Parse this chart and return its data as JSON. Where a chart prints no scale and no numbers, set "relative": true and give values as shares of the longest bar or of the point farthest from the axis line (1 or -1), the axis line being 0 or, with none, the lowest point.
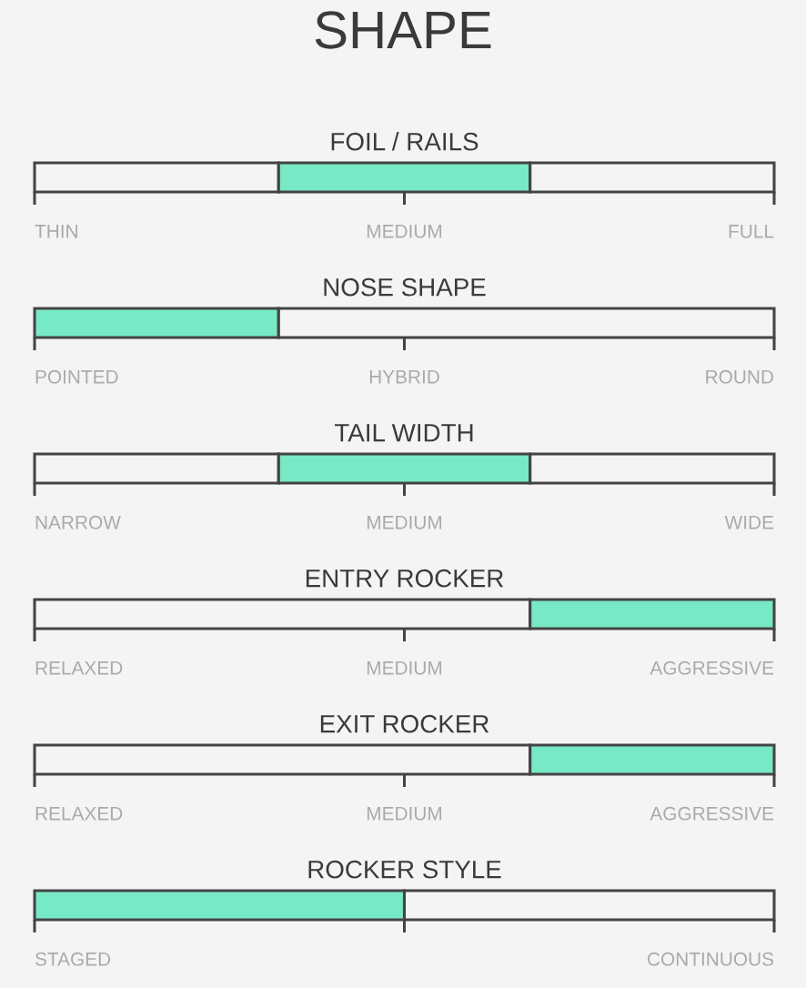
{
  "chart_data": [
    {
      "type": "bar",
      "title": "SHAPE",
      "orientation": "horizontal",
      "relative": true,
      "stacked": true,
      "categories": [
        "FOIL / RAILS"
      ],
      "series": [
        {
          "color": "#f4f4f4",
          "values": [
            0.33
          ]
        },
        {
          "color": "#78e9c6",
          "values": [
            0.34
          ]
        },
        {
          "color": "#f4f4f4",
          "values": [
            0.33
          ]
        }
      ],
      "annotations": [
        "THIN",
        "MEDIUM",
        "FULL"
      ]
    },
    {
      "type": "bar",
      "orientation": "horizontal",
      "relative": true,
      "stacked": true,
      "categories": [
        "NOSE SHAPE"
      ],
      "series": [
        {
          "color": "#f4f4f4",
          "values": [
            null
          ]
        },
        {
          "color": "#78e9c6",
          "values": [
            0.33
          ]
        },
        {
          "color": "#f4f4f4",
          "values": [
            0.67
          ]
        }
      ],
      "annotations": [
        "POINTED",
        "HYBRID",
        "ROUND"
      ]
    },
    {
      "type": "bar",
      "orientation": "horizontal",
      "relative": true,
      "stacked": true,
      "categories": [
        "TAIL WIDTH"
      ],
      "series": [
        {
          "color": "#f4f4f4",
          "values": [
            0.33
          ]
        },
        {
          "color": "#78e9c6",
          "values": [
            0.34
          ]
        },
        {
          "color": "#f4f4f4",
          "values": [
            0.33
          ]
        }
      ],
      "annotations": [
        "NARROW",
        "MEDIUM",
        "WIDE"
      ]
    },
    {
      "type": "bar",
      "orientation": "horizontal",
      "relative": true,
      "stacked": true,
      "categories": [
        "ENTRY ROCKER"
      ],
      "series": [
        {
          "color": "#f4f4f4",
          "values": [
            0.67
          ]
        },
        {
          "color": "#78e9c6",
          "values": [
            0.33
          ]
        },
        {
          "color": "#f4f4f4",
          "values": [
            null
          ]
        }
      ],
      "annotations": [
        "RELAXED",
        "MEDIUM",
        "AGGRESSIVE"
      ]
    },
    {
      "type": "bar",
      "orientation": "horizontal",
      "relative": true,
      "stacked": true,
      "categories": [
        "EXIT ROCKER"
      ],
      "series": [
        {
          "color": "#f4f4f4",
          "values": [
            0.67
          ]
        },
        {
          "color": "#78e9c6",
          "values": [
            0.33
          ]
        },
        {
          "color": "#f4f4f4",
          "values": [
            null
          ]
        }
      ],
      "annotations": [
        "RELAXED",
        "MEDIUM",
        "AGGRESSIVE"
      ]
    },
    {
      "type": "bar",
      "orientation": "horizontal",
      "relative": true,
      "stacked": true,
      "categories": [
        "ROCKER STYLE"
      ],
      "series": [
        {
          "color": "#f4f4f4",
          "values": [
            null
          ]
        },
        {
          "color": "#78e9c6",
          "values": [
            0.5
          ]
        },
        {
          "color": "#f4f4f4",
          "values": [
            0.5
          ]
        }
      ],
      "annotations": [
        "STAGED",
        "CONTINUOUS"
      ]
    }
  ]
}
